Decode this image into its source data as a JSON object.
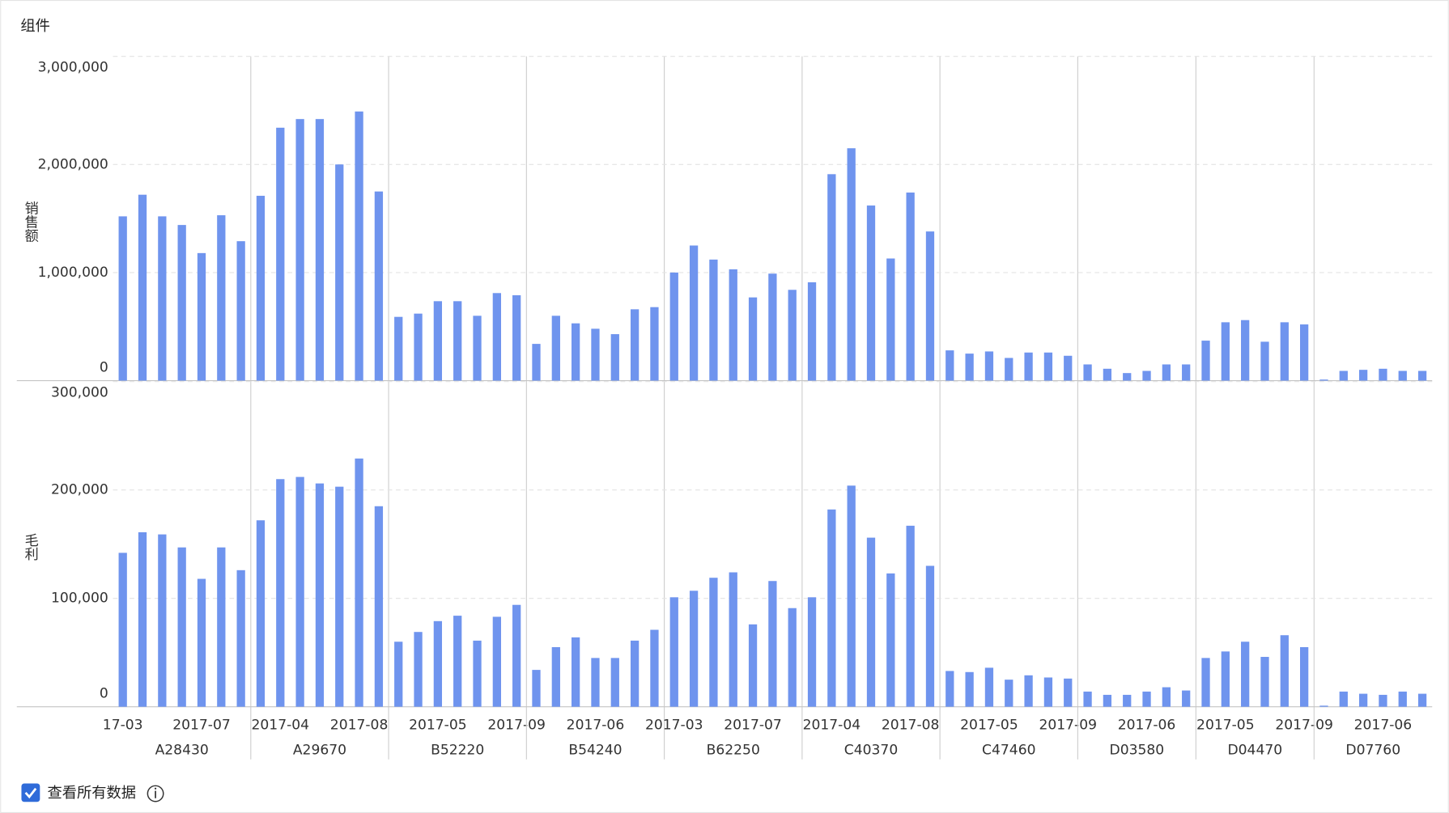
{
  "chart_data": {
    "type": "bar",
    "title": "组件",
    "color": "#6f94ee",
    "grid": true,
    "groups": [
      {
        "name": "A28430",
        "categories": [
          "17-03",
          null,
          null,
          null,
          "2017-07",
          null,
          null
        ]
      },
      {
        "name": "A29670",
        "categories": [
          null,
          "2017-04",
          null,
          null,
          null,
          "2017-08",
          null
        ]
      },
      {
        "name": "B52220",
        "categories": [
          null,
          null,
          "2017-05",
          null,
          null,
          null,
          "2017-09"
        ]
      },
      {
        "name": "B54240",
        "categories": [
          null,
          null,
          null,
          "2017-06",
          null,
          null,
          null
        ]
      },
      {
        "name": "B62250",
        "categories": [
          "2017-03",
          null,
          null,
          null,
          "2017-07",
          null,
          null
        ]
      },
      {
        "name": "C40370",
        "categories": [
          null,
          "2017-04",
          null,
          null,
          null,
          "2017-08",
          null
        ]
      },
      {
        "name": "C47460",
        "categories": [
          null,
          null,
          "2017-05",
          null,
          null,
          null,
          "2017-09"
        ]
      },
      {
        "name": "D03580",
        "categories": [
          null,
          null,
          null,
          "2017-06",
          null,
          null
        ]
      },
      {
        "name": "D04470",
        "categories": [
          null,
          "2017-05",
          null,
          null,
          null,
          "2017-09"
        ]
      },
      {
        "name": "D07760",
        "categories": [
          null,
          null,
          null,
          "2017-06",
          null,
          null
        ]
      }
    ],
    "panels": [
      {
        "ylabel": "销售额",
        "ylim": [
          0,
          3000000
        ],
        "yticks": [
          0,
          {
            "value": 1000000,
            "label": "1,000,000"
          },
          {
            "value": 2000000,
            "label": "2,000,000"
          },
          {
            "value": 3000000,
            "label": "3,000,000"
          }
        ],
        "values": [
          [
            1520000,
            1720000,
            1520000,
            1440000,
            1180000,
            1530000,
            1290000
          ],
          [
            1710000,
            2340000,
            2420000,
            2420000,
            2000000,
            2490000,
            1750000
          ],
          [
            590000,
            620000,
            735000,
            735000,
            600000,
            810000,
            790000
          ],
          [
            340000,
            600000,
            530000,
            480000,
            430000,
            660000,
            680000
          ],
          [
            1000000,
            1250000,
            1120000,
            1030000,
            770000,
            990000,
            840000
          ],
          [
            910000,
            1910000,
            2150000,
            1620000,
            1130000,
            1740000,
            1380000
          ],
          [
            280000,
            250000,
            270000,
            210000,
            260000,
            260000,
            230000
          ],
          [
            150000,
            110000,
            70000,
            90000,
            150000,
            150000
          ],
          [
            370000,
            540000,
            560000,
            360000,
            540000,
            520000
          ],
          [
            10000,
            90000,
            100000,
            110000,
            90000,
            90000
          ]
        ]
      },
      {
        "ylabel": "毛利",
        "ylim": [
          0,
          300000
        ],
        "yticks": [
          0,
          {
            "value": 100000,
            "label": "100,000"
          },
          {
            "value": 200000,
            "label": "200,000"
          },
          {
            "value": 300000,
            "label": "300,000"
          }
        ],
        "values": [
          [
            142000,
            161000,
            159000,
            147000,
            118000,
            147000,
            126000
          ],
          [
            172000,
            210000,
            212000,
            206000,
            203000,
            229000,
            185000
          ],
          [
            60000,
            69000,
            79000,
            84000,
            61000,
            83000,
            94000
          ],
          [
            34000,
            55000,
            64000,
            45000,
            45000,
            61000,
            71000
          ],
          [
            101000,
            107000,
            119000,
            124000,
            76000,
            116000,
            91000
          ],
          [
            101000,
            182000,
            204000,
            156000,
            123000,
            167000,
            130000
          ],
          [
            33000,
            32000,
            36000,
            25000,
            29000,
            27000,
            26000
          ],
          [
            14000,
            11000,
            11000,
            14000,
            18000,
            15000
          ],
          [
            45000,
            51000,
            60000,
            46000,
            66000,
            55000
          ],
          [
            1000,
            14000,
            12000,
            11000,
            14000,
            12000
          ]
        ]
      }
    ]
  },
  "controls": {
    "show_all_label": "查看所有数据"
  }
}
